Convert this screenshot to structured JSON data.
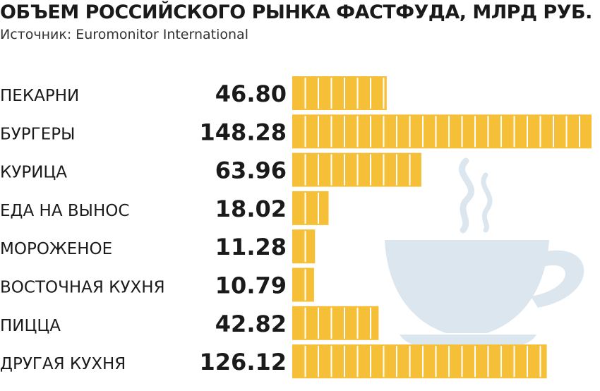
{
  "title": "ОБЪЕМ РОССИЙСКОГО РЫНКА ФАСТФУДА, МЛРД РУБ.",
  "subtitle": "Источник: Euromonitor International",
  "colors": {
    "bar": "#f5c038",
    "segment_line": "#ffffff",
    "text": "#1a1a1a",
    "cup": "#dbe6ee"
  },
  "decoration_icon": "coffee-cup-icon",
  "chart_data": {
    "type": "bar",
    "orientation": "horizontal",
    "categories": [
      "ПЕКАРНИ",
      "БУРГЕРЫ",
      "КУРИЦА",
      "ЕДА НА ВЫНОС",
      "МОРОЖЕНОЕ",
      "ВОСТОЧНАЯ КУХНЯ",
      "ПИЦЦА",
      "ДРУГАЯ КУХНЯ"
    ],
    "values": [
      46.8,
      148.28,
      63.96,
      18.02,
      11.28,
      10.79,
      42.82,
      126.12
    ],
    "value_labels": [
      "46.80",
      "148.28",
      "63.96",
      "18.02",
      "11.28",
      "10.79",
      "42.82",
      "126.12"
    ],
    "xlim": [
      0,
      148.28
    ],
    "title": "ОБЪЕМ РОССИЙСКОГО РЫНКА ФАСТФУДА, МЛРД РУБ.",
    "xlabel": "",
    "ylabel": "",
    "grid": false,
    "legend": "none"
  }
}
